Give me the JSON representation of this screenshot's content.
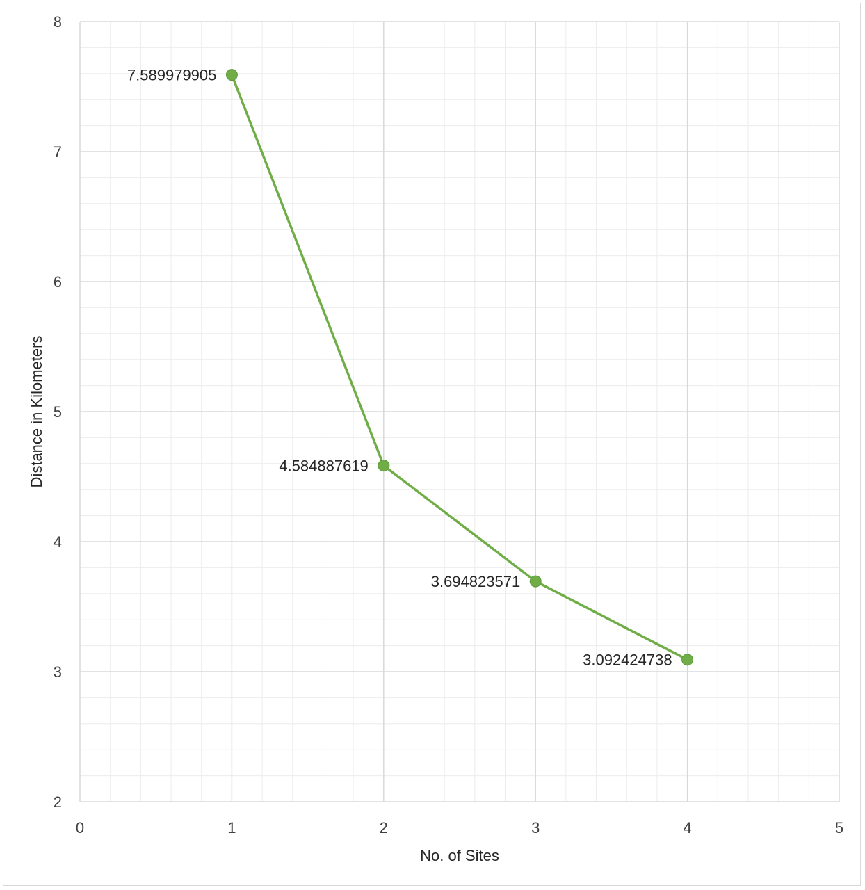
{
  "chart_data": {
    "type": "line",
    "title": "",
    "xlabel": "No. of Sites",
    "ylabel": "Distance in Kilometers",
    "xlim": [
      0,
      5
    ],
    "ylim": [
      2,
      8
    ],
    "x_ticks": [
      0,
      1,
      2,
      3,
      4,
      5
    ],
    "y_ticks": [
      2,
      3,
      4,
      5,
      6,
      7,
      8
    ],
    "grid": true,
    "minor_grid": true,
    "legend": "none",
    "series": [
      {
        "color": "#70ad47",
        "points": [
          {
            "x": 1,
            "y": 7.589979905,
            "label": "7.589979905"
          },
          {
            "x": 2,
            "y": 4.584887619,
            "label": "4.584887619"
          },
          {
            "x": 3,
            "y": 3.694823571,
            "label": "3.694823571"
          },
          {
            "x": 4,
            "y": 3.092424738,
            "label": "3.092424738"
          }
        ]
      }
    ],
    "colors": {
      "major_grid": "#d9d9d9",
      "minor_grid": "#ececec",
      "line": "#70ad47",
      "marker": "#70ad47"
    }
  }
}
